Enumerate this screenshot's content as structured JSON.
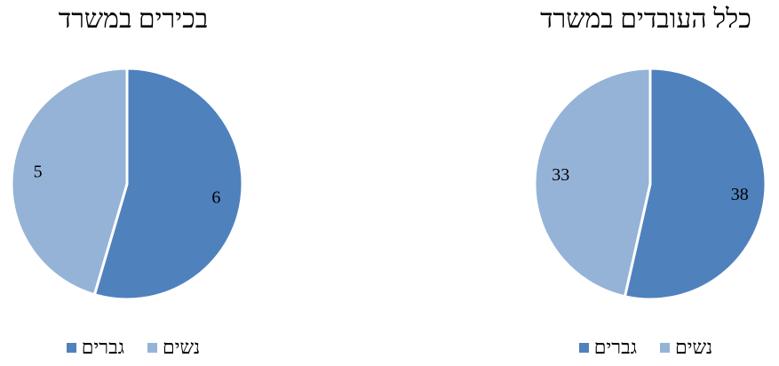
{
  "chart_data": [
    {
      "type": "pie",
      "title": "בכירים במשרד",
      "categories": [
        "גברים",
        "נשים"
      ],
      "values": [
        6,
        5
      ],
      "colors": [
        "#4F81BD",
        "#95B3D7"
      ],
      "legend_position": "bottom"
    },
    {
      "type": "pie",
      "title": "כלל העובדים במשרד",
      "categories": [
        "גברים",
        "נשים"
      ],
      "values": [
        38,
        33
      ],
      "colors": [
        "#4F81BD",
        "#95B3D7"
      ],
      "legend_position": "bottom"
    }
  ]
}
